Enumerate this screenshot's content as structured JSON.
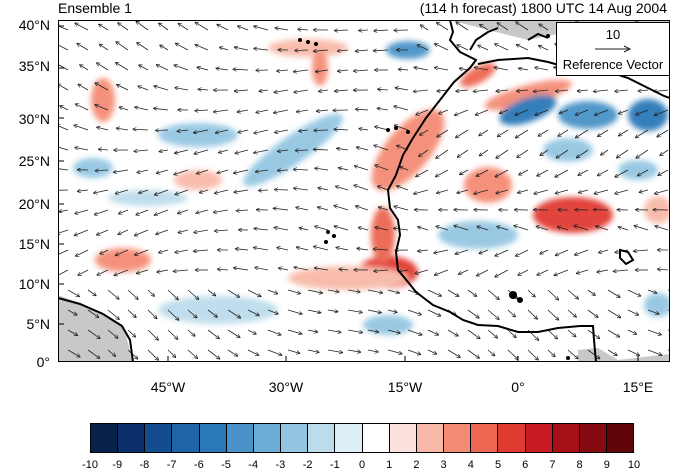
{
  "header": {
    "left_title": "Ensemble 1",
    "right_title": "(114 h forecast) 1800 UTC 14 Aug 2004"
  },
  "axes": {
    "lat_labels": [
      "40°N",
      "35°N",
      "30°N",
      "25°N",
      "20°N",
      "15°N",
      "10°N",
      "5°N",
      "0°"
    ],
    "lon_labels": [
      "45°W",
      "30°W",
      "15°W",
      "0°",
      "15°E"
    ]
  },
  "reference_vector": {
    "value": "10",
    "label": "Reference Vector"
  },
  "colorbar": {
    "labels": [
      "-10",
      "-9",
      "-8",
      "-7",
      "-6",
      "-5",
      "-4",
      "-3",
      "-2",
      "-1",
      "0",
      "1",
      "2",
      "3",
      "4",
      "5",
      "6",
      "7",
      "8",
      "9",
      "10"
    ],
    "colors": [
      "#08214a",
      "#0b2f6b",
      "#144d8f",
      "#1f64a8",
      "#2b78b8",
      "#4893c7",
      "#6aaed6",
      "#94c6e2",
      "#bcdceb",
      "#ddeef7",
      "#ffffff",
      "#ffffff",
      "#fce2de",
      "#f8b9a8",
      "#f48c75",
      "#ec6651",
      "#e03b30",
      "#c91b23",
      "#a81018",
      "#860b10",
      "#620508"
    ]
  },
  "colors": {
    "land_gray": "#c8c8c8",
    "coast": "#000000",
    "positive_anomaly": "#e03b30",
    "negative_anomaly": "#4893c7"
  }
}
